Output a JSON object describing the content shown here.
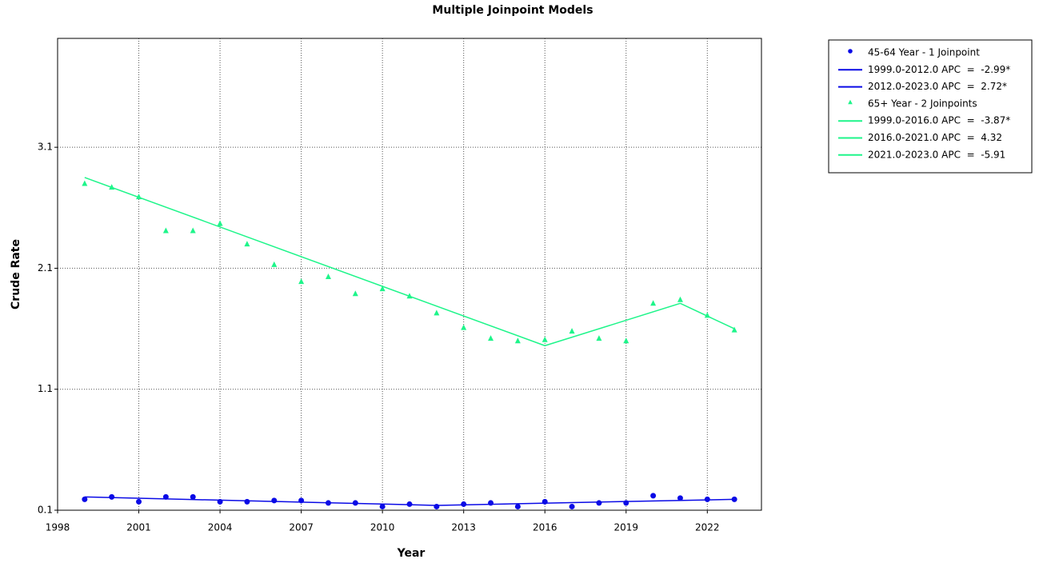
{
  "chart_data": {
    "type": "scatter",
    "title": "Multiple Joinpoint Models",
    "x_label": "Year",
    "y_label": "Crude Rate",
    "x": [
      1999,
      2000,
      2001,
      2002,
      2003,
      2004,
      2005,
      2006,
      2007,
      2008,
      2009,
      2010,
      2011,
      2012,
      2013,
      2014,
      2015,
      2016,
      2017,
      2018,
      2019,
      2020,
      2021,
      2022,
      2023
    ],
    "xlim": [
      1998,
      2024
    ],
    "xticks": [
      1998,
      2001,
      2004,
      2007,
      2010,
      2013,
      2016,
      2019,
      2022
    ],
    "ylim": [
      0.1,
      4.0
    ],
    "yticks": [
      0.1,
      1.1,
      2.1,
      3.1
    ],
    "grid": true,
    "legend": "outside-right",
    "series": [
      {
        "name": "45-64 Year - 1 Joinpoint",
        "color": "#0a0ae6",
        "marker": "circle",
        "values": [
          0.19,
          0.21,
          0.17,
          0.21,
          0.21,
          0.17,
          0.17,
          0.18,
          0.18,
          0.16,
          0.16,
          0.13,
          0.15,
          0.13,
          0.15,
          0.16,
          0.13,
          0.17,
          0.13,
          0.16,
          0.16,
          0.22,
          0.2,
          0.19,
          0.19
        ],
        "segments": [
          {
            "name": "1999.0-2012.0 APC  =  -2.99*",
            "x": [
              1999,
              2012
            ],
            "values": [
              0.21,
              0.14
            ]
          },
          {
            "name": "2012.0-2023.0 APC  =  2.72*",
            "x": [
              2012,
              2023
            ],
            "values": [
              0.14,
              0.19
            ]
          }
        ]
      },
      {
        "name": "65+ Year - 2 Joinpoints",
        "color": "#1ef58a",
        "marker": "triangle",
        "values": [
          2.8,
          2.77,
          2.69,
          2.41,
          2.41,
          2.47,
          2.3,
          2.13,
          1.99,
          2.03,
          1.89,
          1.93,
          1.87,
          1.73,
          1.61,
          1.52,
          1.5,
          1.51,
          1.58,
          1.52,
          1.5,
          1.81,
          1.84,
          1.71,
          1.59
        ],
        "segments": [
          {
            "name": "1999.0-2016.0 APC  =  -3.87*",
            "x": [
              1999,
              2016
            ],
            "values": [
              2.85,
              1.46
            ]
          },
          {
            "name": "2016.0-2021.0 APC  =  4.32",
            "x": [
              2016,
              2021
            ],
            "values": [
              1.46,
              1.81
            ]
          },
          {
            "name": "2021.0-2023.0 APC  =  -5.91",
            "x": [
              2021,
              2023
            ],
            "values": [
              1.81,
              1.6
            ]
          }
        ]
      }
    ]
  }
}
